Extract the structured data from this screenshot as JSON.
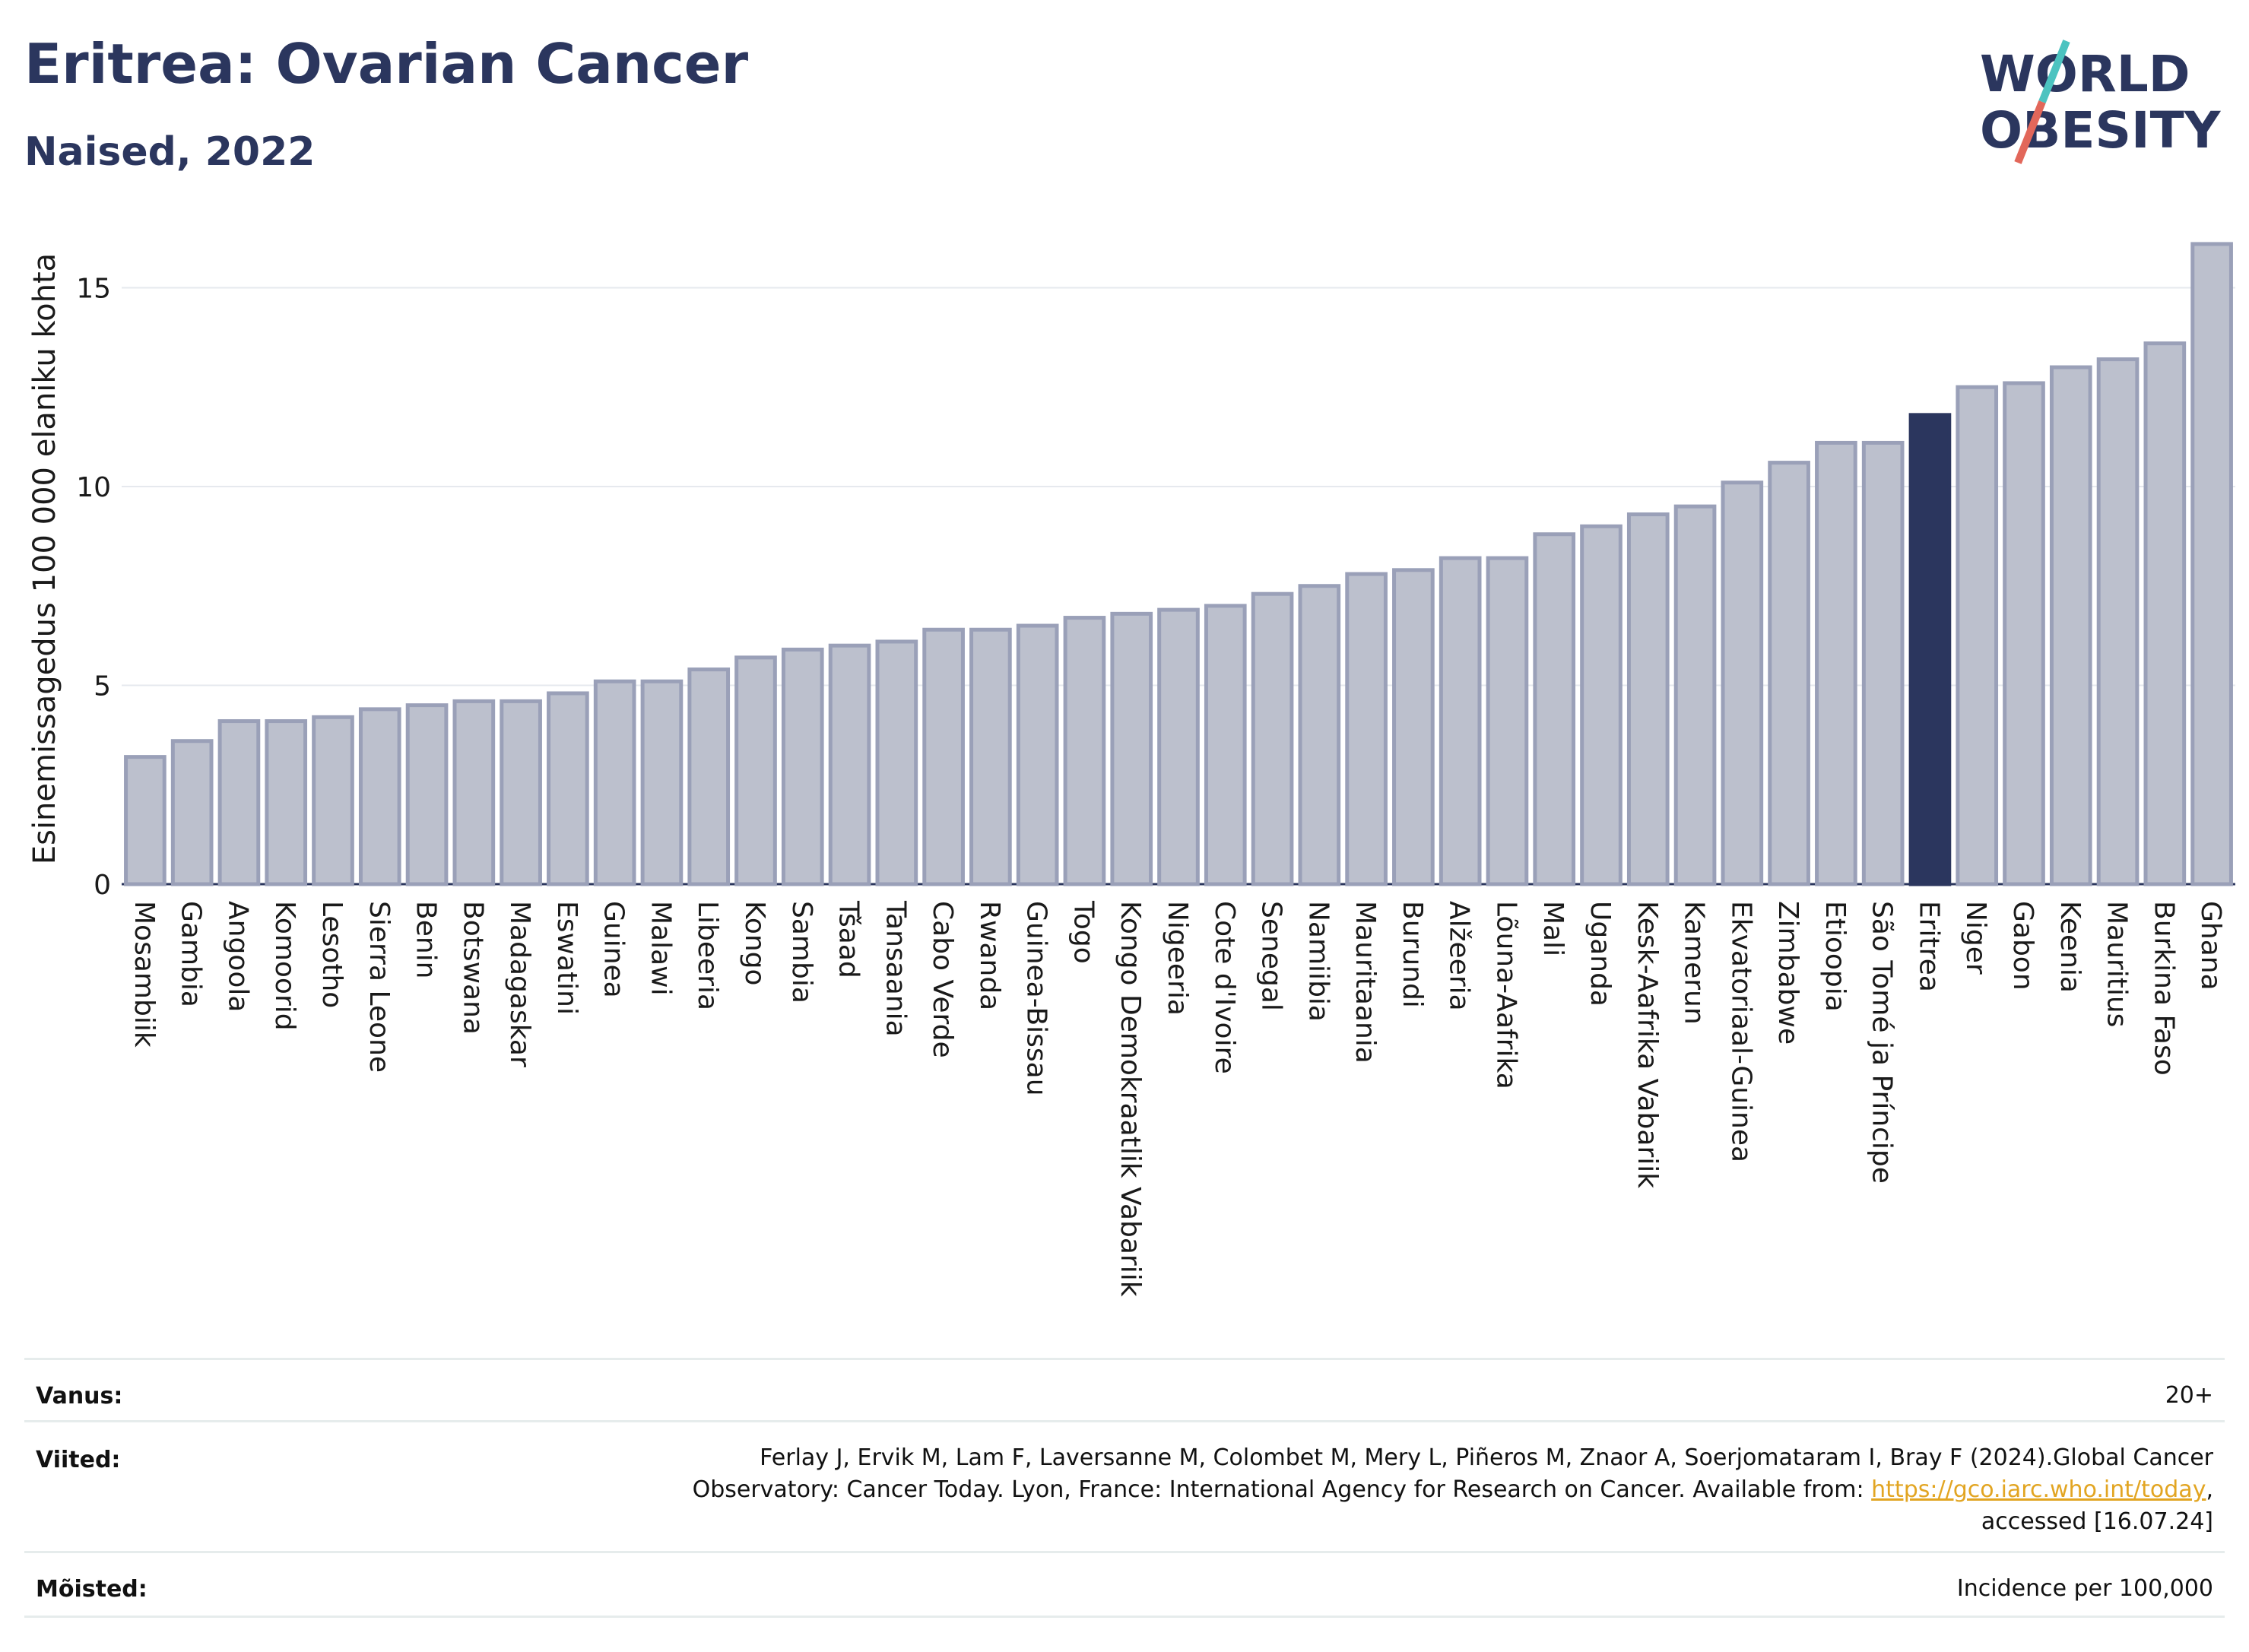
{
  "title": "Eritrea: Ovarian Cancer",
  "subtitle": "Naised, 2022",
  "logo": {
    "line1": "WORLD",
    "line2": "OBESITY",
    "accent_colors": [
      "#4cc3c0",
      "#e2675a"
    ]
  },
  "colors": {
    "bar": "#bcc0cd",
    "bar_stroke": "#9aa0b8",
    "highlight": "#2b365e",
    "grid": "#e6e9ee"
  },
  "chart_data": {
    "type": "bar",
    "ylabel": "Esinemissagedus 100 000 elaniku kohta",
    "ylim": [
      0,
      16.5
    ],
    "yticks": [
      0,
      5,
      10,
      15
    ],
    "grid": true,
    "highlight": "Eritrea",
    "categories": [
      "Mosambiik",
      "Gambia",
      "Angoola",
      "Komoorid",
      "Lesotho",
      "Sierra Leone",
      "Benin",
      "Botswana",
      "Madagaskar",
      "Eswatini",
      "Guinea",
      "Malawi",
      "Libeeria",
      "Kongo",
      "Sambia",
      "Tšaad",
      "Tansaania",
      "Cabo Verde",
      "Rwanda",
      "Guinea-Bissau",
      "Togo",
      "Kongo Demokraatlik Vabariik",
      "Nigeeria",
      "Cote d'Ivoire",
      "Senegal",
      "Namiibia",
      "Mauritaania",
      "Burundi",
      "Alžeeria",
      "Lõuna-Aafrika",
      "Mali",
      "Uganda",
      "Kesk-Aafrika Vabariik",
      "Kamerun",
      "Ekvatoriaal-Guinea",
      "Zimbabwe",
      "Etioopia",
      "São Tomé ja Príncipe",
      "Eritrea",
      "Niger",
      "Gabon",
      "Keenia",
      "Mauritius",
      "Burkina Faso",
      "Ghana"
    ],
    "values": [
      3.2,
      3.6,
      4.1,
      4.1,
      4.2,
      4.4,
      4.5,
      4.6,
      4.6,
      4.8,
      5.1,
      5.1,
      5.4,
      5.7,
      5.9,
      6.0,
      6.1,
      6.4,
      6.4,
      6.5,
      6.7,
      6.8,
      6.9,
      7.0,
      7.3,
      7.5,
      7.8,
      7.9,
      8.2,
      8.2,
      8.8,
      9.0,
      9.3,
      9.5,
      10.1,
      10.6,
      11.1,
      11.1,
      11.8,
      12.5,
      12.6,
      13.0,
      13.2,
      13.6,
      16.1
    ]
  },
  "info": {
    "age_label": "Vanus:",
    "age_value": "20+",
    "refs_label": "Viited:",
    "refs_text_1": "Ferlay J, Ervik M, Lam F, Laversanne M, Colombet M, Mery L, Piñeros M, Znaor A, Soerjomataram I, Bray F (2024).Global Cancer",
    "refs_text_2": "Observatory: Cancer Today. Lyon, France: International Agency for Research on Cancer. Available from: ",
    "refs_link": "https://gco.iarc.who.int/today",
    "refs_text_3": ",",
    "refs_text_4": "accessed [16.07.24]",
    "def_label": "Mõisted:",
    "def_value": "Incidence per 100,000"
  }
}
